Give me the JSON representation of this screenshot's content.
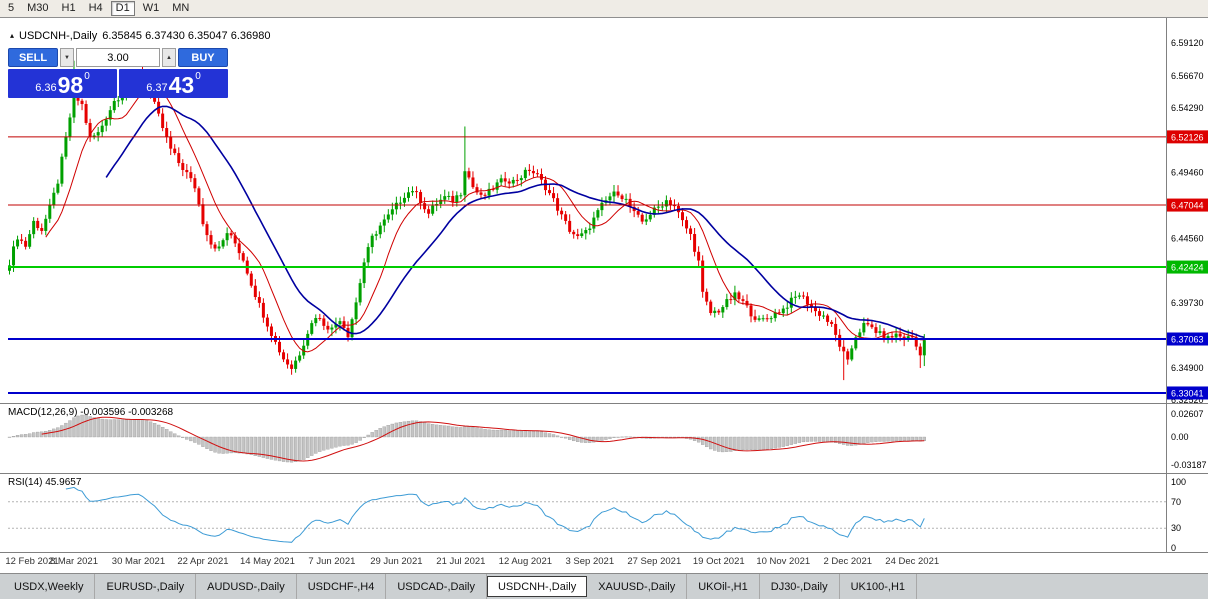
{
  "toolbar": {
    "periods": [
      {
        "label": "5",
        "active": false
      },
      {
        "label": "M30",
        "active": false
      },
      {
        "label": "H1",
        "active": false
      },
      {
        "label": "H4",
        "active": false
      },
      {
        "label": "D1",
        "active": true
      },
      {
        "label": "W1",
        "active": false
      },
      {
        "label": "MN",
        "active": false
      }
    ]
  },
  "icons": {
    "chart_marker": "▴",
    "spin_up": "▲",
    "spin_down": "▼"
  },
  "chart": {
    "title_symbol": "USDCNH-,Daily",
    "title_ohlc": "6.35845 6.37430 6.35047 6.36980",
    "trade_panel": {
      "sell_label": "SELL",
      "buy_label": "BUY",
      "volume": "3.00",
      "sell_price": {
        "small": "6.36",
        "big": "98",
        "sup": "0"
      },
      "buy_price": {
        "small": "6.37",
        "big": "43",
        "sup": "0"
      }
    },
    "axis": {
      "ticks": [
        {
          "label": "6.59120",
          "price": 6.5912
        },
        {
          "label": "6.56670",
          "price": 6.5667
        },
        {
          "label": "6.54290",
          "price": 6.5429
        },
        {
          "label": "6.49460",
          "price": 6.4946
        },
        {
          "label": "6.44560",
          "price": 6.4456
        },
        {
          "label": "6.39730",
          "price": 6.3973
        },
        {
          "label": "6.34900",
          "price": 6.349
        },
        {
          "label": "6.32520",
          "price": 6.3252
        }
      ],
      "badges": [
        {
          "label": "6.52126",
          "price": 6.52126,
          "color": "#dd0000"
        },
        {
          "label": "6.47044",
          "price": 6.47044,
          "color": "#dd0000"
        },
        {
          "label": "6.42424",
          "price": 6.42424,
          "color": "#00b800"
        },
        {
          "label": "6.37063",
          "price": 6.37063,
          "color": "#0000cc"
        },
        {
          "label": "6.33041",
          "price": 6.33041,
          "color": "#0000cc"
        }
      ]
    },
    "dates": [
      "12 Feb 2021",
      "8 Mar 2021",
      "30 Mar 2021",
      "22 Apr 2021",
      "14 May 2021",
      "7 Jun 2021",
      "29 Jun 2021",
      "21 Jul 2021",
      "12 Aug 2021",
      "3 Sep 2021",
      "27 Sep 2021",
      "19 Oct 2021",
      "10 Nov 2021",
      "2 Dec 2021",
      "24 Dec 2021"
    ]
  },
  "indicators": {
    "macd": {
      "label": "MACD(12,26,9) -0.003596 -0.003268",
      "scale_top": "0.02607",
      "scale_zero": "0.00",
      "scale_bottom": "-0.03187"
    },
    "rsi": {
      "label": "RSI(14) 45.9657",
      "scale": [
        "100",
        "70",
        "30",
        "0"
      ]
    }
  },
  "tabs": [
    {
      "label": "USDX,Weekly",
      "active": false
    },
    {
      "label": "EURUSD-,Daily",
      "active": false
    },
    {
      "label": "AUDUSD-,Daily",
      "active": false
    },
    {
      "label": "USDCHF-,H4",
      "active": false
    },
    {
      "label": "USDCAD-,Daily",
      "active": false
    },
    {
      "label": "USDCNH-,Daily",
      "active": true
    },
    {
      "label": "XAUUSD-,Daily",
      "active": false
    },
    {
      "label": "UKOil-,H1",
      "active": false
    },
    {
      "label": "DJ30-,Daily",
      "active": false
    },
    {
      "label": "UK100-,H1",
      "active": false
    }
  ],
  "colors": {
    "candle_up": "#00a000",
    "candle_down": "#e60000",
    "ma_fast": "#d00000",
    "ma_slow": "#0000a0",
    "macd_hist": "#c4c4c4",
    "macd_hist_stroke": "#8f8f8f",
    "macd_signal": "#d01010",
    "rsi_line": "#3d9bd5",
    "axis_line": "#808080"
  },
  "chart_data": {
    "type": "candlestick",
    "symbol": "USDCNH",
    "timeframe": "Daily",
    "candle_count": 228,
    "y_range": [
      6.323,
      6.5935
    ],
    "y_ticks": [
      6.5912,
      6.5667,
      6.5429,
      6.4946,
      6.4456,
      6.3973,
      6.349,
      6.3252
    ],
    "last_candle": {
      "open": 6.35845,
      "high": 6.3743,
      "low": 6.35047,
      "close": 6.3698
    },
    "levels": [
      {
        "price": 6.52126,
        "color": "#c00000",
        "width": 1
      },
      {
        "price": 6.47044,
        "color": "#c00000",
        "width": 1
      },
      {
        "price": 6.42424,
        "color": "#00cc00",
        "width": 2
      },
      {
        "price": 6.37063,
        "color": "#0000cc",
        "width": 2
      },
      {
        "price": 6.33041,
        "color": "#0000cc",
        "width": 2
      }
    ],
    "close_anchors": [
      [
        0,
        6.428
      ],
      [
        2,
        6.447
      ],
      [
        4,
        6.44
      ],
      [
        6,
        6.458
      ],
      [
        8,
        6.452
      ],
      [
        10,
        6.468
      ],
      [
        12,
        6.488
      ],
      [
        14,
        6.52
      ],
      [
        16,
        6.552
      ],
      [
        18,
        6.545
      ],
      [
        20,
        6.52
      ],
      [
        22,
        6.524
      ],
      [
        24,
        6.536
      ],
      [
        26,
        6.548
      ],
      [
        28,
        6.554
      ],
      [
        30,
        6.56
      ],
      [
        32,
        6.568
      ],
      [
        34,
        6.56
      ],
      [
        36,
        6.545
      ],
      [
        38,
        6.528
      ],
      [
        40,
        6.512
      ],
      [
        42,
        6.502
      ],
      [
        44,
        6.494
      ],
      [
        46,
        6.484
      ],
      [
        48,
        6.458
      ],
      [
        50,
        6.442
      ],
      [
        52,
        6.438
      ],
      [
        54,
        6.45
      ],
      [
        56,
        6.442
      ],
      [
        58,
        6.43
      ],
      [
        60,
        6.412
      ],
      [
        62,
        6.396
      ],
      [
        64,
        6.382
      ],
      [
        66,
        6.368
      ],
      [
        68,
        6.356
      ],
      [
        70,
        6.349
      ],
      [
        72,
        6.36
      ],
      [
        74,
        6.376
      ],
      [
        76,
        6.388
      ],
      [
        78,
        6.382
      ],
      [
        80,
        6.378
      ],
      [
        82,
        6.386
      ],
      [
        84,
        6.374
      ],
      [
        86,
        6.398
      ],
      [
        88,
        6.428
      ],
      [
        90,
        6.446
      ],
      [
        92,
        6.455
      ],
      [
        94,
        6.462
      ],
      [
        96,
        6.47
      ],
      [
        98,
        6.478
      ],
      [
        100,
        6.482
      ],
      [
        102,
        6.474
      ],
      [
        104,
        6.464
      ],
      [
        106,
        6.472
      ],
      [
        108,
        6.476
      ],
      [
        110,
        6.474
      ],
      [
        112,
        6.48
      ],
      [
        113,
        6.498
      ],
      [
        115,
        6.484
      ],
      [
        117,
        6.476
      ],
      [
        119,
        6.48
      ],
      [
        121,
        6.486
      ],
      [
        123,
        6.49
      ],
      [
        125,
        6.488
      ],
      [
        127,
        6.492
      ],
      [
        129,
        6.497
      ],
      [
        131,
        6.492
      ],
      [
        133,
        6.484
      ],
      [
        135,
        6.474
      ],
      [
        137,
        6.462
      ],
      [
        139,
        6.452
      ],
      [
        141,
        6.446
      ],
      [
        143,
        6.45
      ],
      [
        145,
        6.46
      ],
      [
        147,
        6.47
      ],
      [
        149,
        6.477
      ],
      [
        151,
        6.48
      ],
      [
        153,
        6.474
      ],
      [
        155,
        6.464
      ],
      [
        157,
        6.458
      ],
      [
        159,
        6.464
      ],
      [
        161,
        6.469
      ],
      [
        163,
        6.474
      ],
      [
        165,
        6.47
      ],
      [
        167,
        6.458
      ],
      [
        169,
        6.448
      ],
      [
        171,
        6.428
      ],
      [
        172,
        6.404
      ],
      [
        174,
        6.39
      ],
      [
        176,
        6.392
      ],
      [
        178,
        6.398
      ],
      [
        180,
        6.403
      ],
      [
        182,
        6.398
      ],
      [
        184,
        6.39
      ],
      [
        186,
        6.384
      ],
      [
        188,
        6.386
      ],
      [
        190,
        6.39
      ],
      [
        192,
        6.393
      ],
      [
        194,
        6.399
      ],
      [
        196,
        6.404
      ],
      [
        198,
        6.398
      ],
      [
        200,
        6.391
      ],
      [
        202,
        6.388
      ],
      [
        204,
        6.38
      ],
      [
        206,
        6.366
      ],
      [
        208,
        6.353
      ],
      [
        209,
        6.364
      ],
      [
        210,
        6.373
      ],
      [
        212,
        6.381
      ],
      [
        214,
        6.379
      ],
      [
        216,
        6.374
      ],
      [
        218,
        6.371
      ],
      [
        220,
        6.374
      ],
      [
        222,
        6.371
      ],
      [
        224,
        6.372
      ],
      [
        226,
        6.358
      ],
      [
        227,
        6.3698
      ]
    ],
    "spikes": [
      {
        "i": 16,
        "high": 6.578
      },
      {
        "i": 33,
        "high": 6.581
      },
      {
        "i": 113,
        "high": 6.529
      },
      {
        "i": 70,
        "low": 6.344
      },
      {
        "i": 207,
        "low": 6.34
      },
      {
        "i": 226,
        "low": 6.349
      }
    ],
    "ma_fast_period": 10,
    "ma_slow_period": 25,
    "macd": {
      "params": [
        12,
        26,
        9
      ],
      "current": -0.003596,
      "signal_current": -0.003268,
      "scale": [
        -0.03187,
        0.02607
      ]
    },
    "rsi": {
      "period": 14,
      "current": 45.9657,
      "levels": [
        30,
        70
      ],
      "scale": [
        0,
        100
      ]
    }
  }
}
